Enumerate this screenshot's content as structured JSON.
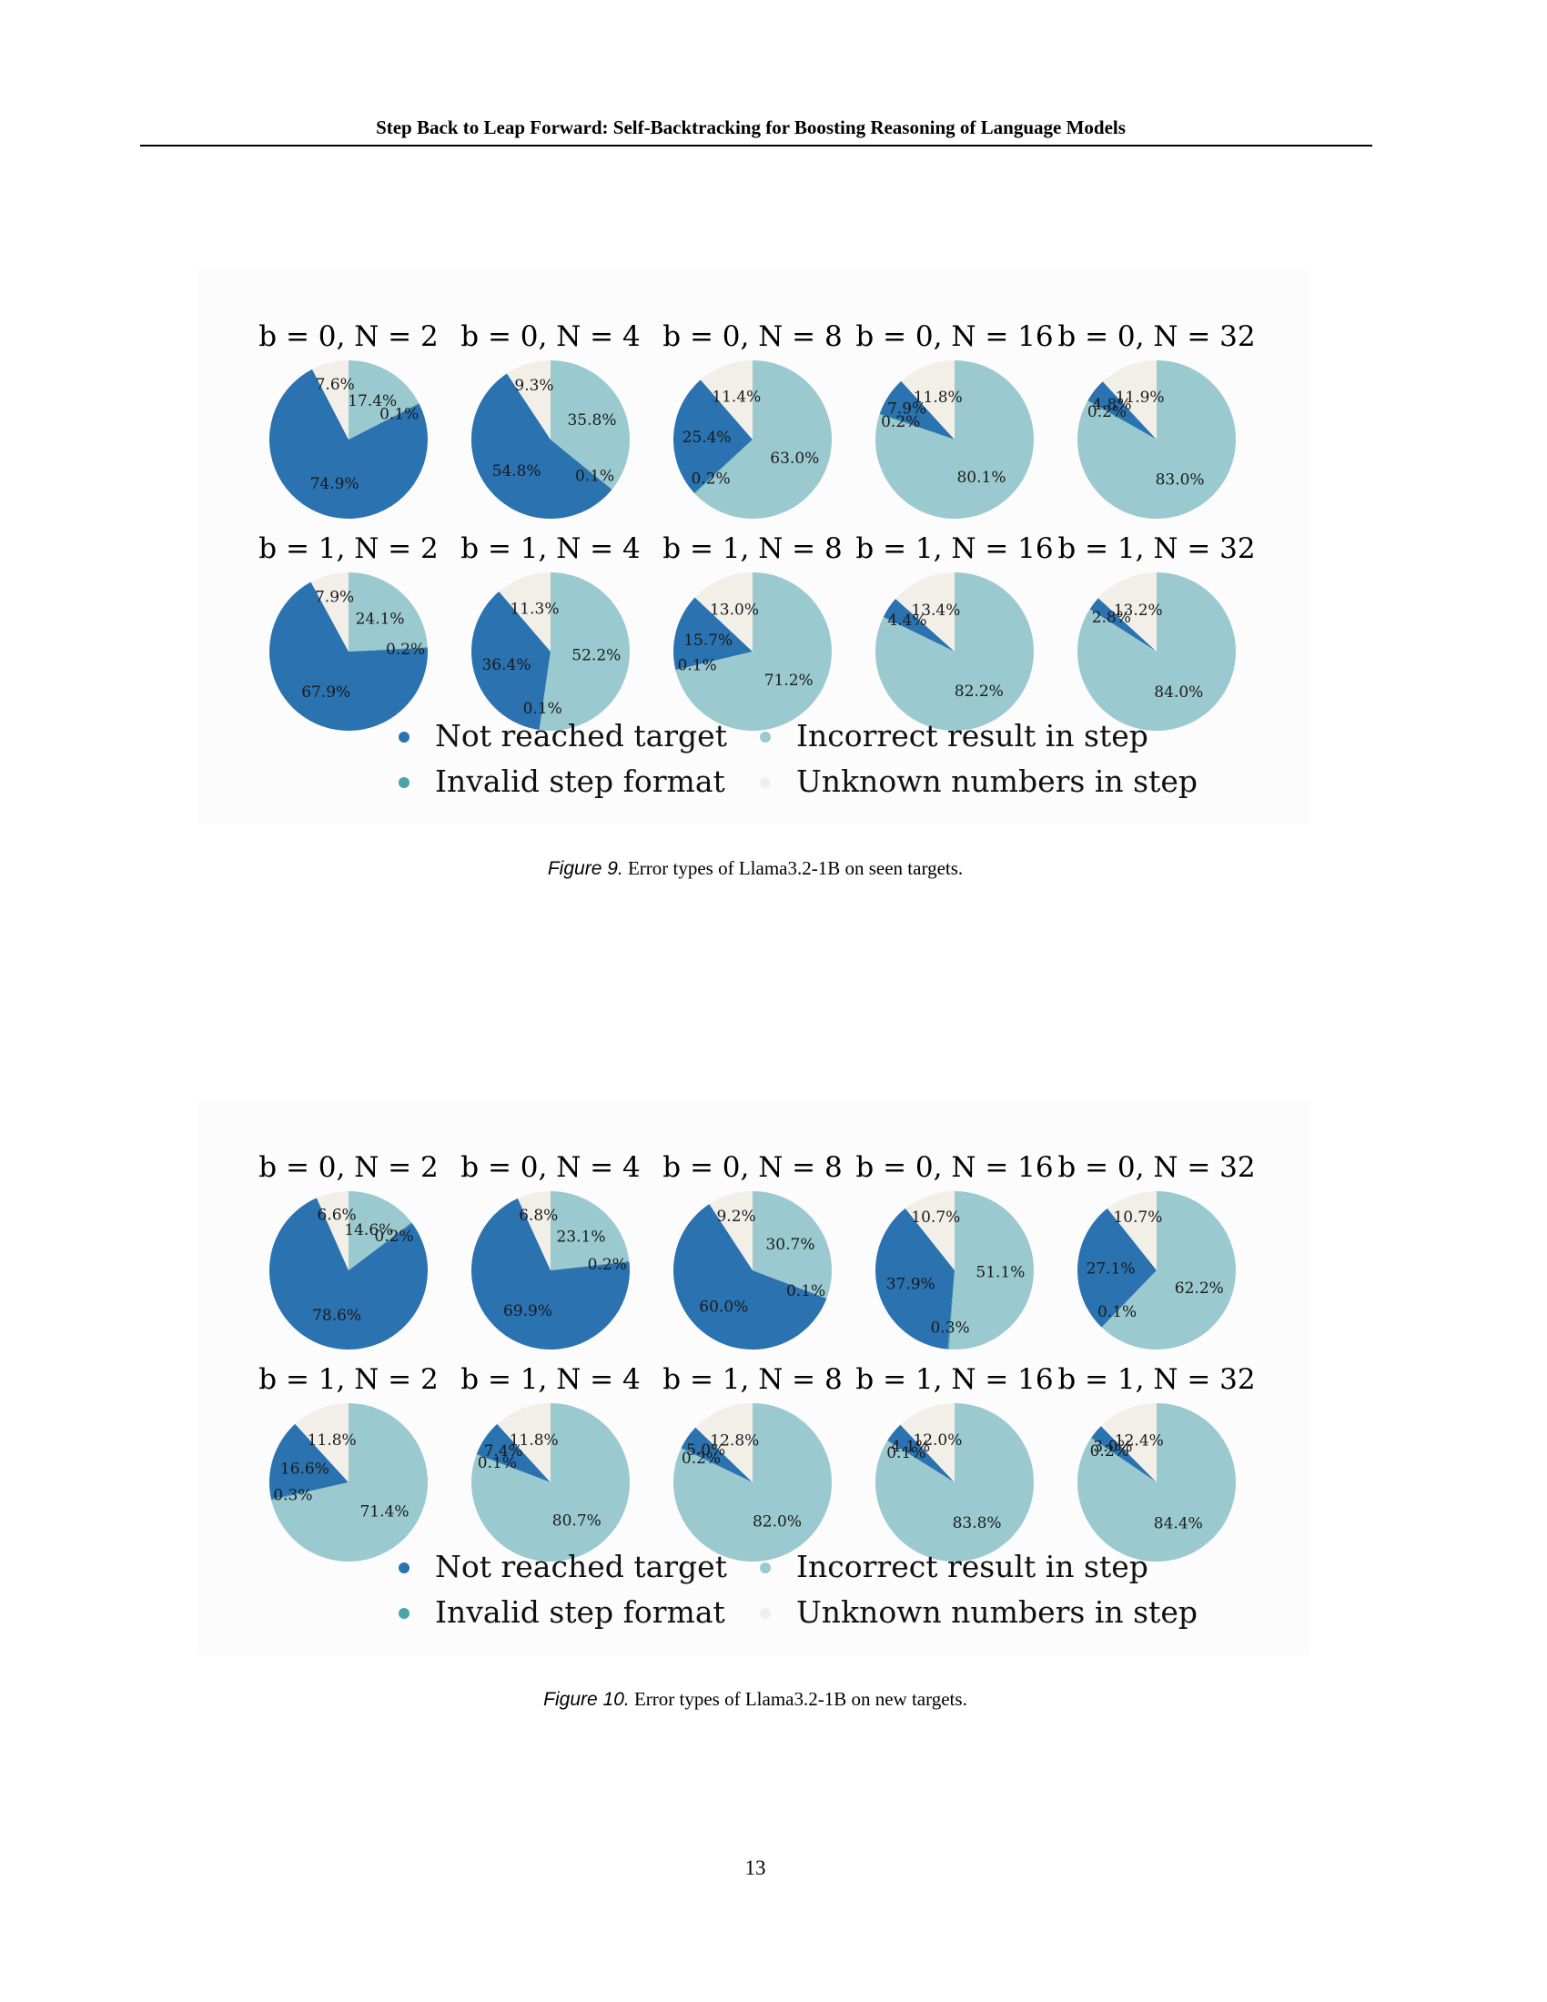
{
  "header": {
    "running_title": "Step Back to Leap Forward: Self-Backtracking for Boosting Reasoning of Language Models"
  },
  "colors": {
    "Not reached target": "#2a72b0",
    "Invalid step format": "#4aa3a8",
    "Incorrect result in step": "#9bc9d0",
    "Unknown numbers in step": "#f2efe8"
  },
  "figures": [
    {
      "caption_label": "Figure 9.",
      "caption_text": "Error types of Llama3.2-1B on seen targets.",
      "legend": [
        "Not reached target",
        "Incorrect result in step",
        "Invalid step format",
        "Unknown numbers in step"
      ]
    },
    {
      "caption_label": "Figure 10.",
      "caption_text": "Error types of Llama3.2-1B on new targets.",
      "legend": [
        "Not reached target",
        "Incorrect result in step",
        "Invalid step format",
        "Unknown numbers in step"
      ]
    }
  ],
  "chart_data": [
    {
      "type": "pie",
      "figure": "Figure 9",
      "categories": [
        "Not reached target",
        "Invalid step format",
        "Incorrect result in step",
        "Unknown numbers in step"
      ],
      "pies": [
        {
          "title": "b = 0, N = 2",
          "values": [
            74.9,
            0.1,
            17.4,
            7.6
          ]
        },
        {
          "title": "b = 0, N = 4",
          "values": [
            54.8,
            0.1,
            35.8,
            9.3
          ]
        },
        {
          "title": "b = 0, N = 8",
          "values": [
            25.4,
            0.2,
            63.0,
            11.4
          ]
        },
        {
          "title": "b = 0, N = 16",
          "values": [
            7.9,
            0.2,
            80.1,
            11.8
          ]
        },
        {
          "title": "b = 0, N = 32",
          "values": [
            4.8,
            0.2,
            83.0,
            11.9
          ]
        },
        {
          "title": "b = 1, N = 2",
          "values": [
            67.9,
            0.2,
            24.1,
            7.9
          ]
        },
        {
          "title": "b = 1, N = 4",
          "values": [
            36.4,
            0.1,
            52.2,
            11.3
          ]
        },
        {
          "title": "b = 1, N = 8",
          "values": [
            15.7,
            0.1,
            71.2,
            13.0
          ]
        },
        {
          "title": "b = 1, N = 16",
          "values": [
            4.4,
            0.0,
            82.2,
            13.4
          ]
        },
        {
          "title": "b = 1, N = 32",
          "values": [
            2.8,
            0.0,
            84.0,
            13.2
          ]
        }
      ],
      "labels": [
        [
          "74.9%",
          "0.1%",
          "17.4%",
          "7.6%"
        ],
        [
          "54.8%",
          "0.1%",
          "35.8%",
          "9.3%"
        ],
        [
          "25.4%",
          "0.2%",
          "63.0%",
          "11.4%"
        ],
        [
          "7.9%",
          "0.2%",
          "80.1%",
          "11.8%"
        ],
        [
          "4.8%",
          "0.2%",
          "83.0%",
          "11.9%"
        ],
        [
          "67.9%",
          "0.2%",
          "24.1%",
          "7.9%"
        ],
        [
          "36.4%",
          "0.1%",
          "52.2%",
          "11.3%"
        ],
        [
          "15.7%",
          "0.1%",
          "71.2%",
          "13.0%"
        ],
        [
          "4.4%",
          "",
          "82.2%",
          "13.4%"
        ],
        [
          "2.8%",
          "",
          "84.0%",
          "13.2%"
        ]
      ],
      "legend_position": "bottom"
    },
    {
      "type": "pie",
      "figure": "Figure 10",
      "categories": [
        "Not reached target",
        "Invalid step format",
        "Incorrect result in step",
        "Unknown numbers in step"
      ],
      "pies": [
        {
          "title": "b = 0, N = 2",
          "values": [
            78.6,
            0.2,
            14.6,
            6.6
          ]
        },
        {
          "title": "b = 0, N = 4",
          "values": [
            69.9,
            0.2,
            23.1,
            6.8
          ]
        },
        {
          "title": "b = 0, N = 8",
          "values": [
            60.0,
            0.1,
            30.7,
            9.2
          ]
        },
        {
          "title": "b = 0, N = 16",
          "values": [
            37.9,
            0.3,
            51.1,
            10.7
          ]
        },
        {
          "title": "b = 0, N = 32",
          "values": [
            27.1,
            0.1,
            62.2,
            10.7
          ]
        },
        {
          "title": "b = 1, N = 2",
          "values": [
            16.6,
            0.3,
            71.4,
            11.8
          ]
        },
        {
          "title": "b = 1, N = 4",
          "values": [
            7.4,
            0.1,
            80.7,
            11.8
          ]
        },
        {
          "title": "b = 1, N = 8",
          "values": [
            5.0,
            0.2,
            82.0,
            12.8
          ]
        },
        {
          "title": "b = 1, N = 16",
          "values": [
            4.1,
            0.1,
            83.8,
            12.0
          ]
        },
        {
          "title": "b = 1, N = 32",
          "values": [
            3.0,
            0.2,
            84.4,
            12.4
          ]
        }
      ],
      "labels": [
        [
          "78.6%",
          "0.2%",
          "14.6%",
          "6.6%"
        ],
        [
          "69.9%",
          "0.2%",
          "23.1%",
          "6.8%"
        ],
        [
          "60.0%",
          "0.1%",
          "30.7%",
          "9.2%"
        ],
        [
          "37.9%",
          "0.3%",
          "51.1%",
          "10.7%"
        ],
        [
          "27.1%",
          "0.1%",
          "62.2%",
          "10.7%"
        ],
        [
          "16.6%",
          "0.3%",
          "71.4%",
          "11.8%"
        ],
        [
          "7.4%",
          "0.1%",
          "80.7%",
          "11.8%"
        ],
        [
          "5.0%",
          "0.2%",
          "82.0%",
          "12.8%"
        ],
        [
          "4.1%",
          "0.1%",
          "83.8%",
          "12.0%"
        ],
        [
          "3.0%",
          "0.2%",
          "84.4%",
          "12.4%"
        ]
      ],
      "legend_position": "bottom"
    }
  ],
  "page_number": "13"
}
